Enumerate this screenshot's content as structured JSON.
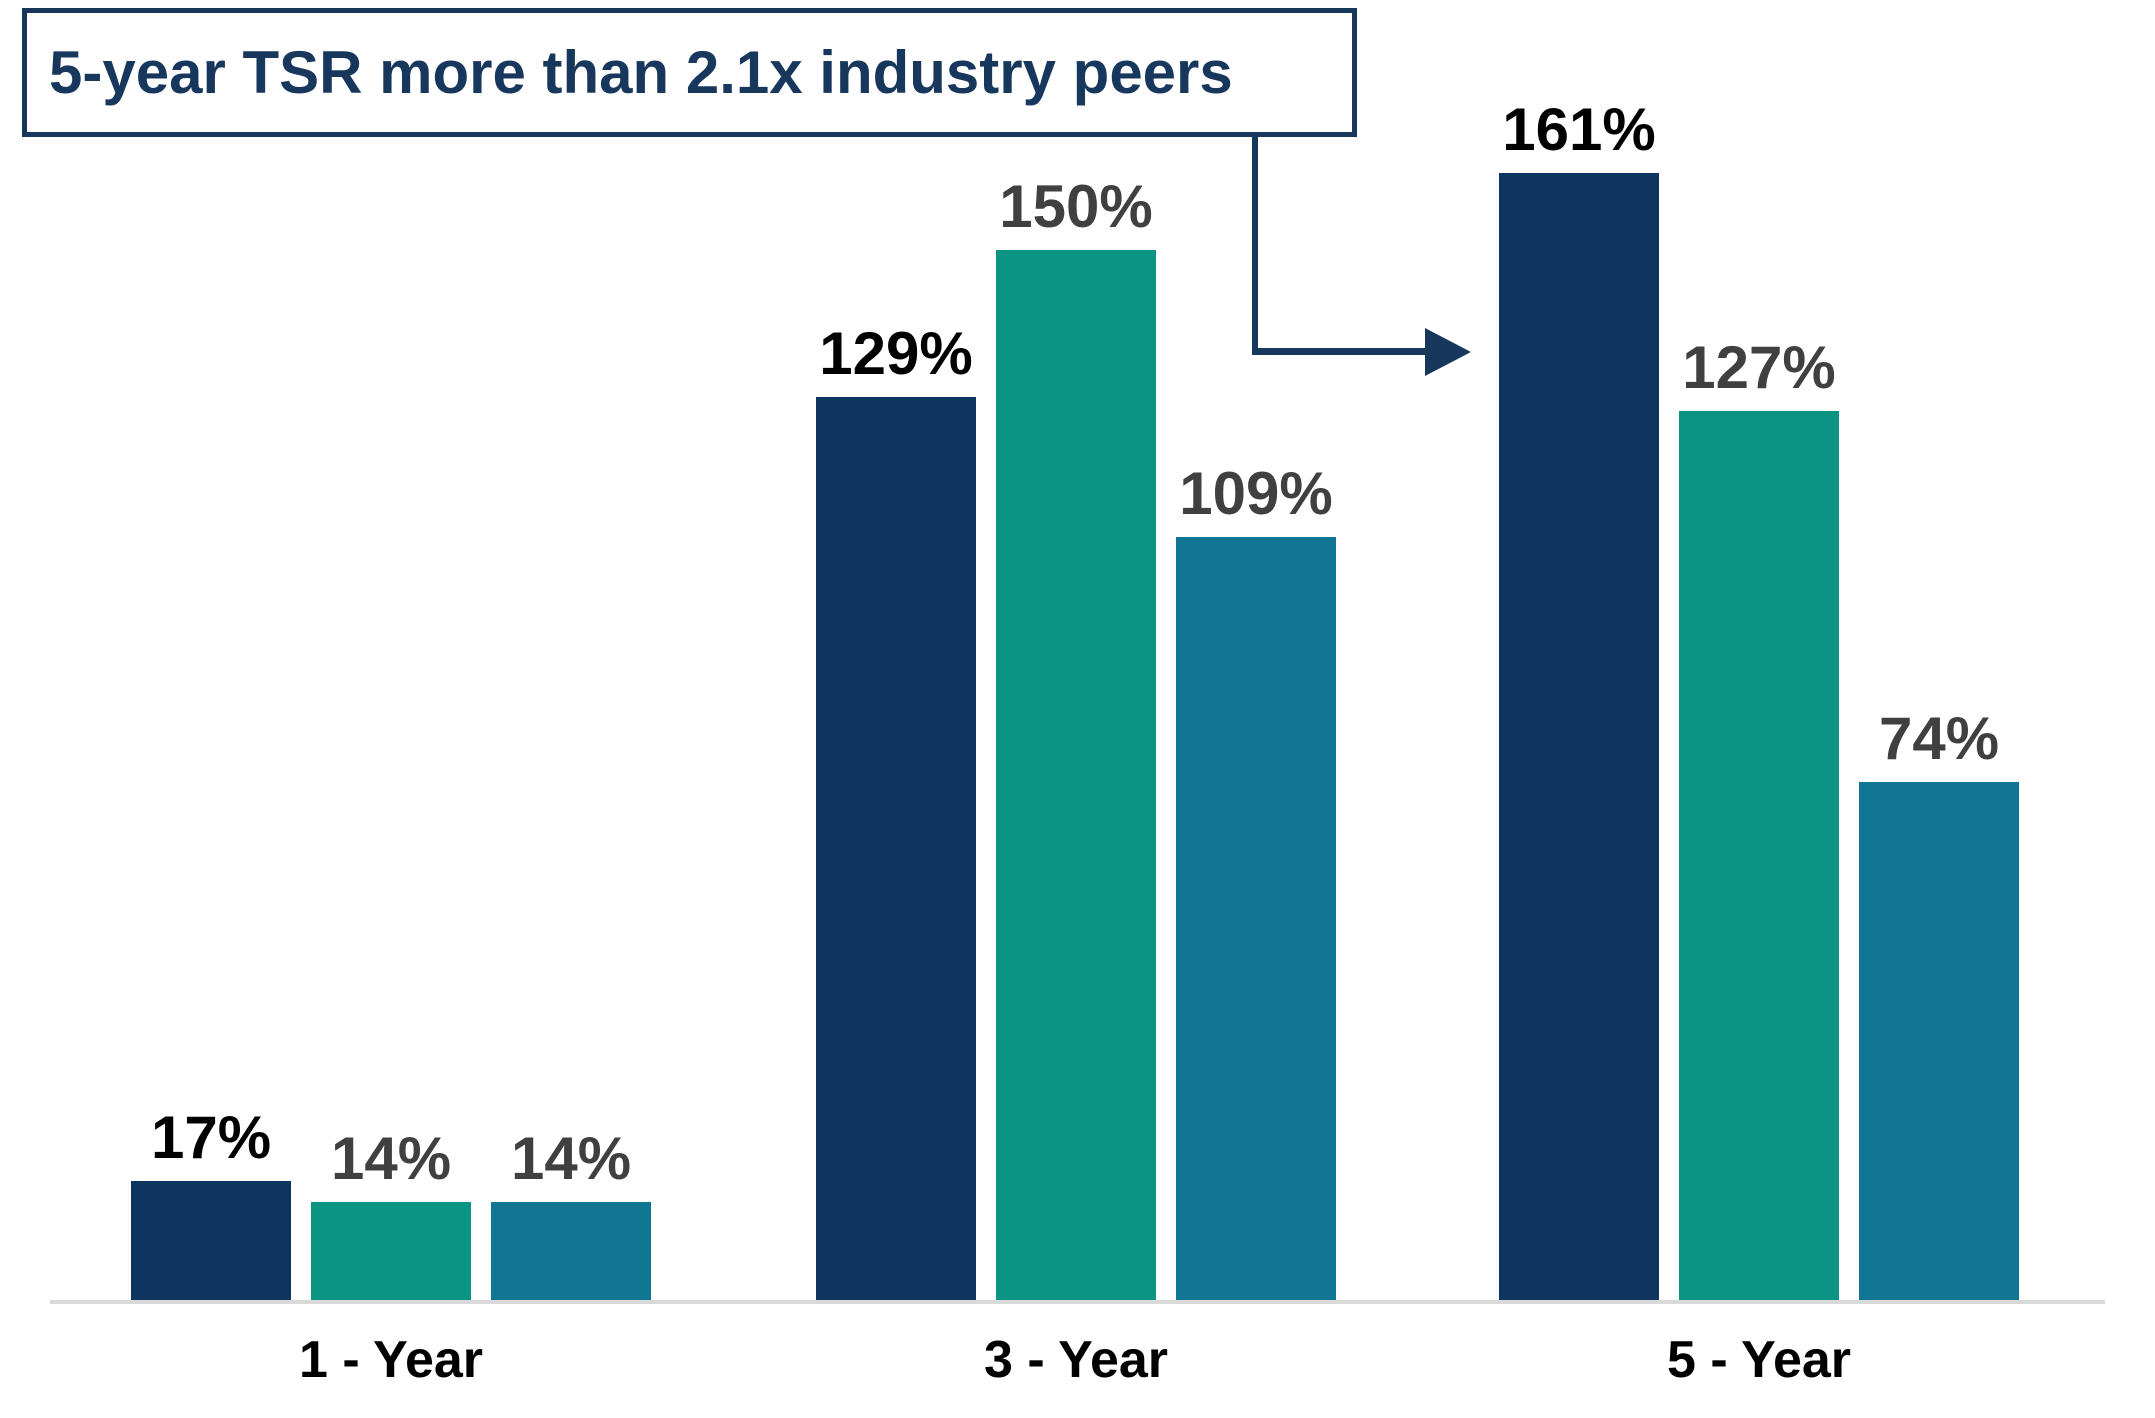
{
  "callout": {
    "text": "5-year TSR more than 2.1x industry peers"
  },
  "colors": {
    "accent_navy": "#17375D",
    "bar_navy": "#0E3560",
    "bar_teal": "#0B9384",
    "bar_blue": "#117693",
    "label_black": "#000000",
    "label_gray": "#404040",
    "baseline_gray": "#D9D9D9"
  },
  "chart_data": {
    "type": "bar",
    "title": "",
    "xlabel": "",
    "ylabel": "",
    "value_suffix": "%",
    "categories": [
      "1 - Year",
      "3 - Year",
      "5 - Year"
    ],
    "series": [
      {
        "name": "series-1-navy",
        "color": "#0E3560",
        "label_color": "#000000",
        "values": [
          17,
          129,
          161
        ]
      },
      {
        "name": "series-2-teal",
        "color": "#0B9384",
        "label_color": "#404040",
        "values": [
          14,
          150,
          127
        ]
      },
      {
        "name": "series-3-blue",
        "color": "#117693",
        "label_color": "#404040",
        "values": [
          14,
          109,
          74
        ]
      }
    ],
    "ylim": [
      0,
      170
    ],
    "grid": false,
    "legend": "none",
    "y_axis_visible": false,
    "annotation": {
      "text": "5-year TSR more than 2.1x industry peers",
      "points_to": "5 - Year, series-1 bar (161%)"
    }
  }
}
